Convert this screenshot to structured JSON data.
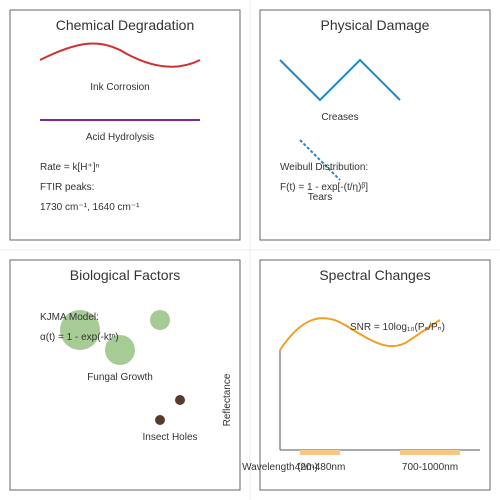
{
  "panels": [
    {
      "title": "Chemical Degradation",
      "labels": [
        "Ink Corrosion",
        "Acid Hydrolysis",
        "Rate = k[H⁺]ⁿ",
        "FTIR peaks:",
        "1730 cm⁻¹, 1640 cm⁻¹"
      ]
    },
    {
      "title": "Physical Damage",
      "labels": [
        "Creases",
        "Weibull Distribution:",
        "F(t) = 1 - exp[-(t/η)ᵝ]",
        "Tears"
      ]
    },
    {
      "title": "Biological Factors",
      "labels": [
        "KJMA Model:",
        "α(t) = 1 - exp(-ktⁿ)",
        "Fungal Growth",
        "Insect Holes"
      ]
    },
    {
      "title": "Spectral Changes",
      "labels": [
        "SNR = 10log₁₀(Pₛ/Pₙ)",
        "Reflectance",
        "Wavelength (nm)",
        "420-480nm",
        "700-1000nm"
      ]
    }
  ]
}
